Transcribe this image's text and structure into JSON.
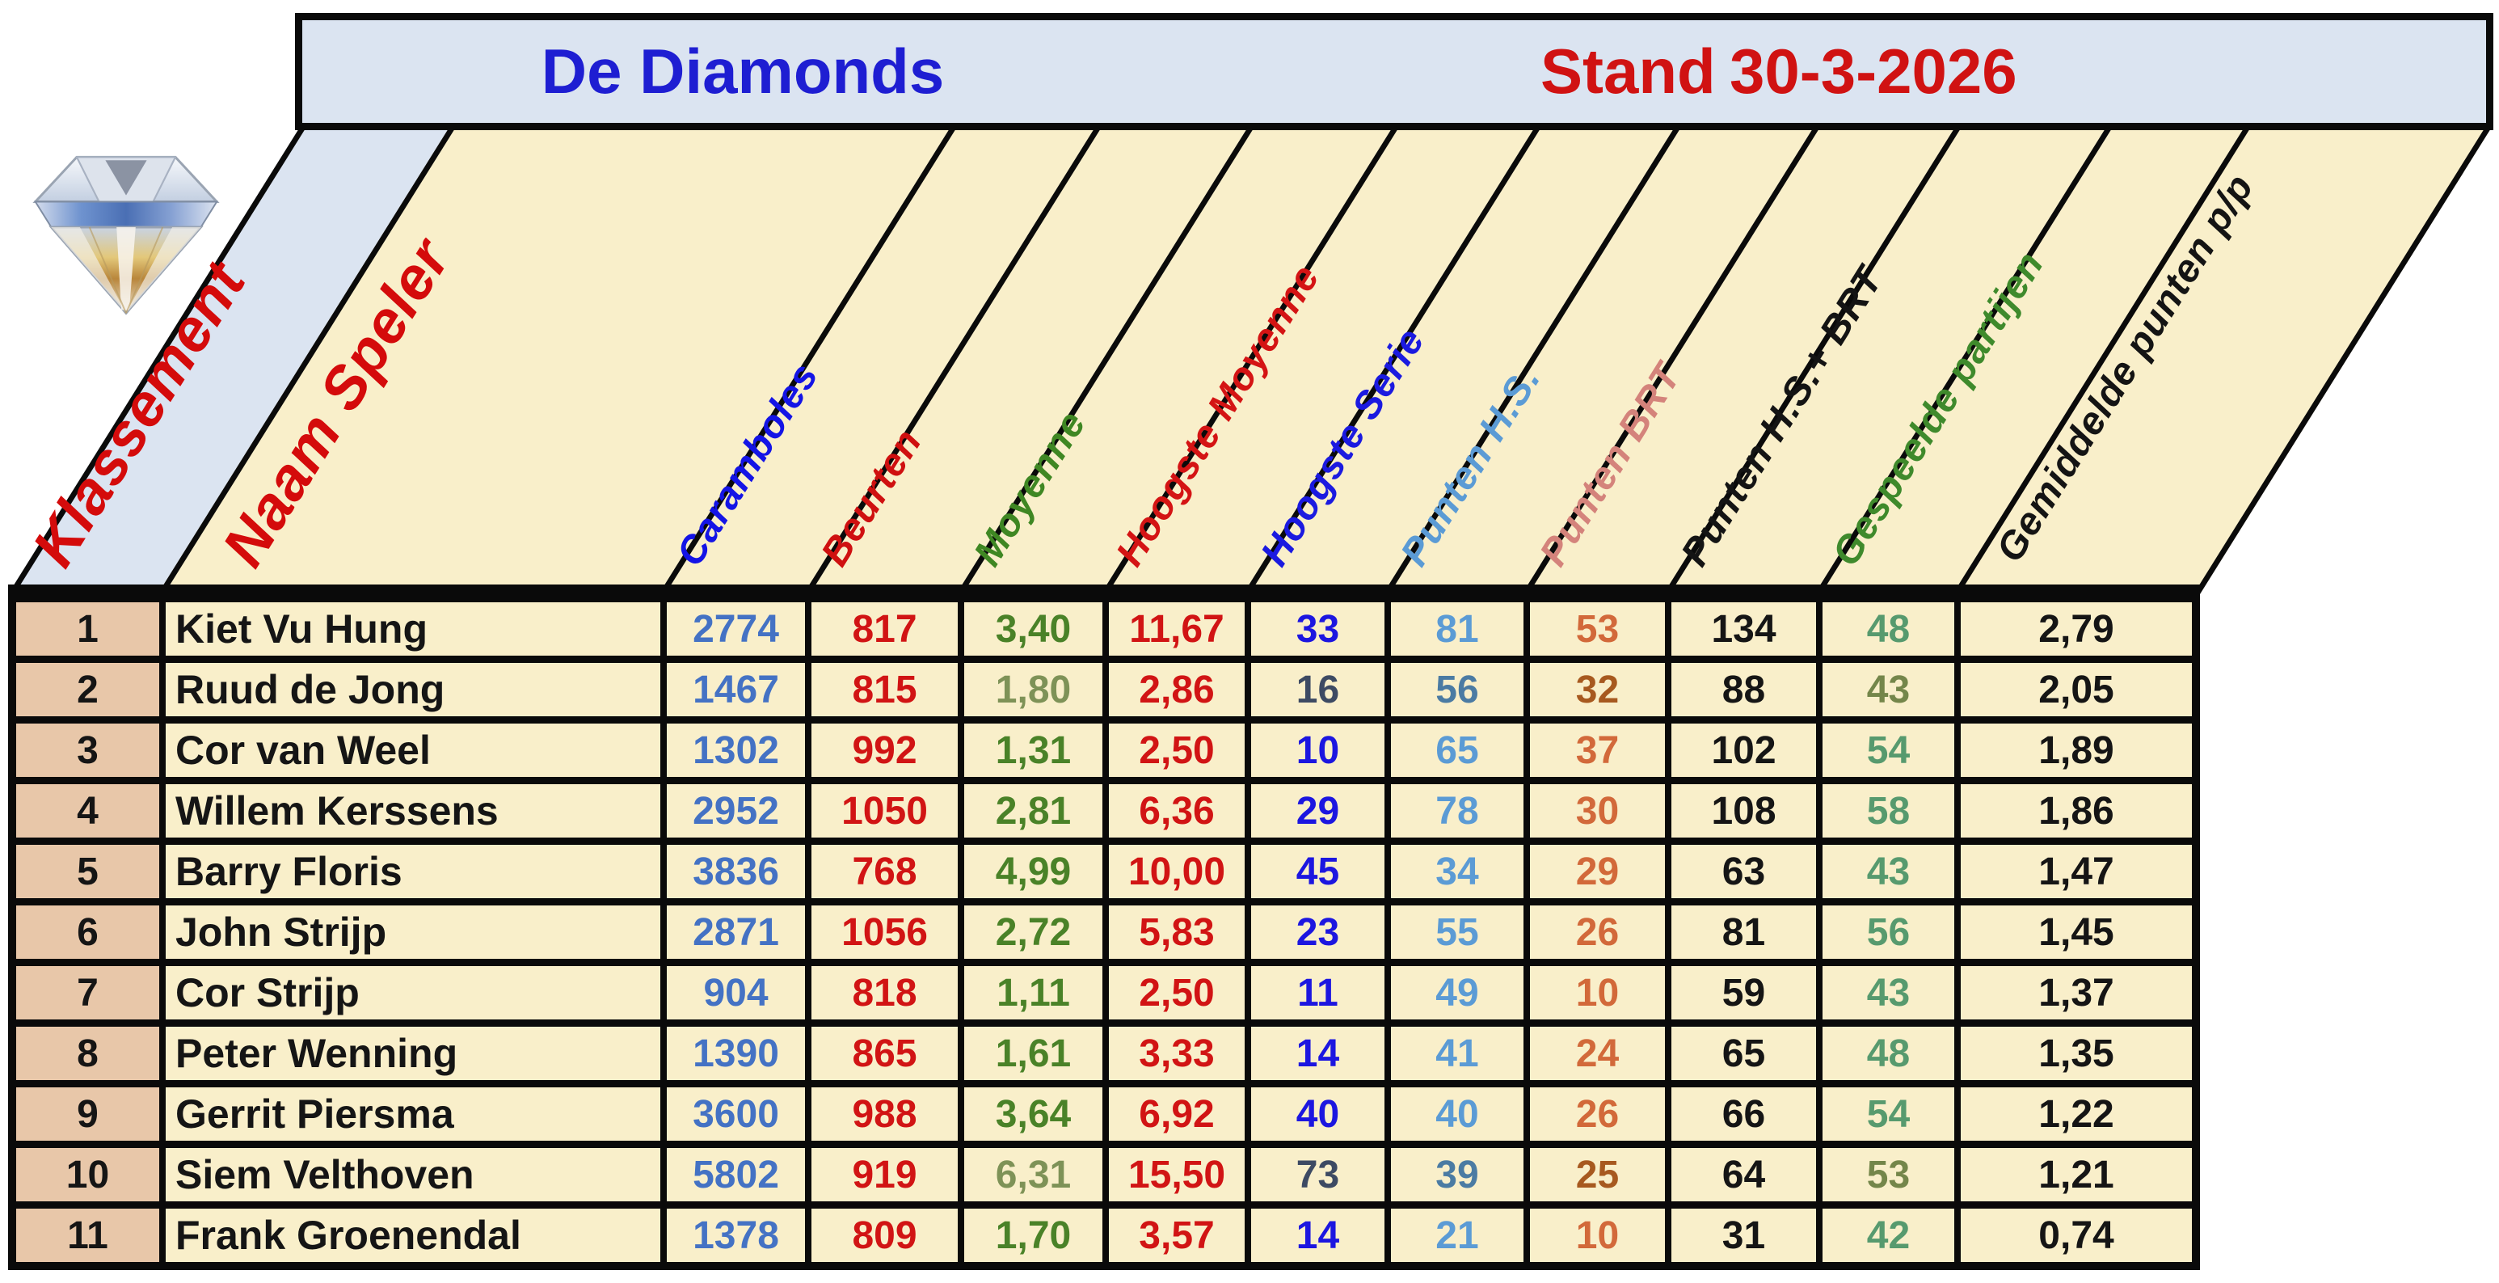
{
  "title_bar": {
    "club_name": "De Diamonds",
    "stand_label": "Stand",
    "stand_date": "30-3-2026"
  },
  "logo": {
    "icon": "diamond"
  },
  "colors": {
    "page_bg": "#ffffff",
    "bar_bg": "#dbe4f1",
    "header_bg": "#f9efca",
    "cell_bg": "#f9efca",
    "rank_bg": "#e8c7a9",
    "border": "#0a0a0a",
    "title_blue": "#1e1ed2",
    "title_red": "#d01212"
  },
  "columns": [
    {
      "id": "klassement",
      "label": "Klassement",
      "label_color": "#d40b0b",
      "value_color": "#151515"
    },
    {
      "id": "naam",
      "label": "Naam Speler",
      "label_color": "#d40b0b",
      "value_color": "#151515"
    },
    {
      "id": "caramboles",
      "label": "Caramboles",
      "label_color": "#1414e6",
      "value_color": "#4472c4"
    },
    {
      "id": "beurten",
      "label": "Beurten",
      "label_color": "#cf1010",
      "value_color": "#d11414"
    },
    {
      "id": "moyenne",
      "label": "Moyenne",
      "label_color": "#3f8723",
      "value_color": "#4a8228",
      "muted_value_color": "#7e9257"
    },
    {
      "id": "hoogste-moyenne",
      "label": "Hoogste Moyenne",
      "label_color": "#d41414",
      "value_color": "#d11414"
    },
    {
      "id": "hoogste-serie",
      "label": "Hoogste Serie",
      "label_color": "#1b1ae0",
      "value_color": "#1c16e0",
      "muted_value_color": "#3d4a63"
    },
    {
      "id": "punten-hs",
      "label": "Punten H.S.",
      "label_color": "#5b9bd5",
      "value_color": "#5b9bd5",
      "muted_value_color": "#4b7ba3"
    },
    {
      "id": "punten-brt",
      "label": "Punten BRT",
      "label_color": "#d4837b",
      "value_color": "#d2693a",
      "muted_value_color": "#a7591f"
    },
    {
      "id": "punten-hs-brt",
      "label": "Punten H.S.+ BRT",
      "label_color": "#141414",
      "value_color": "#151515"
    },
    {
      "id": "gespeelde",
      "label": "Gespeelde partijen",
      "label_color": "#3f8a2c",
      "value_color": "#579a6e",
      "muted_value_color": "#74864a"
    },
    {
      "id": "gemiddelde",
      "label": "Gemiddelde punten p/p",
      "label_color": "#141414",
      "value_color": "#151515"
    }
  ],
  "rows": [
    {
      "rank": "1",
      "name": "Kiet Vu Hung",
      "muted": false,
      "values": [
        "2774",
        "817",
        "3,40",
        "11,67",
        "33",
        "81",
        "53",
        "134",
        "48",
        "2,79"
      ]
    },
    {
      "rank": "2",
      "name": "Ruud de Jong",
      "muted": true,
      "values": [
        "1467",
        "815",
        "1,80",
        "2,86",
        "16",
        "56",
        "32",
        "88",
        "43",
        "2,05"
      ]
    },
    {
      "rank": "3",
      "name": "Cor van Weel",
      "muted": false,
      "values": [
        "1302",
        "992",
        "1,31",
        "2,50",
        "10",
        "65",
        "37",
        "102",
        "54",
        "1,89"
      ]
    },
    {
      "rank": "4",
      "name": "Willem Kerssens",
      "muted": false,
      "values": [
        "2952",
        "1050",
        "2,81",
        "6,36",
        "29",
        "78",
        "30",
        "108",
        "58",
        "1,86"
      ]
    },
    {
      "rank": "5",
      "name": "Barry Floris",
      "muted": false,
      "values": [
        "3836",
        "768",
        "4,99",
        "10,00",
        "45",
        "34",
        "29",
        "63",
        "43",
        "1,47"
      ]
    },
    {
      "rank": "6",
      "name": "John Strijp",
      "muted": false,
      "values": [
        "2871",
        "1056",
        "2,72",
        "5,83",
        "23",
        "55",
        "26",
        "81",
        "56",
        "1,45"
      ]
    },
    {
      "rank": "7",
      "name": "Cor Strijp",
      "muted": false,
      "values": [
        "904",
        "818",
        "1,11",
        "2,50",
        "11",
        "49",
        "10",
        "59",
        "43",
        "1,37"
      ]
    },
    {
      "rank": "8",
      "name": "Peter Wenning",
      "muted": false,
      "values": [
        "1390",
        "865",
        "1,61",
        "3,33",
        "14",
        "41",
        "24",
        "65",
        "48",
        "1,35"
      ]
    },
    {
      "rank": "9",
      "name": "Gerrit Piersma",
      "muted": false,
      "values": [
        "3600",
        "988",
        "3,64",
        "6,92",
        "40",
        "40",
        "26",
        "66",
        "54",
        "1,22"
      ]
    },
    {
      "rank": "10",
      "name": "Siem Velthoven",
      "muted": true,
      "values": [
        "5802",
        "919",
        "6,31",
        "15,50",
        "73",
        "39",
        "25",
        "64",
        "53",
        "1,21"
      ]
    },
    {
      "rank": "11",
      "name": "Frank Groenendal",
      "muted": false,
      "values": [
        "1378",
        "809",
        "1,70",
        "3,57",
        "14",
        "21",
        "10",
        "31",
        "42",
        "0,74"
      ]
    }
  ]
}
